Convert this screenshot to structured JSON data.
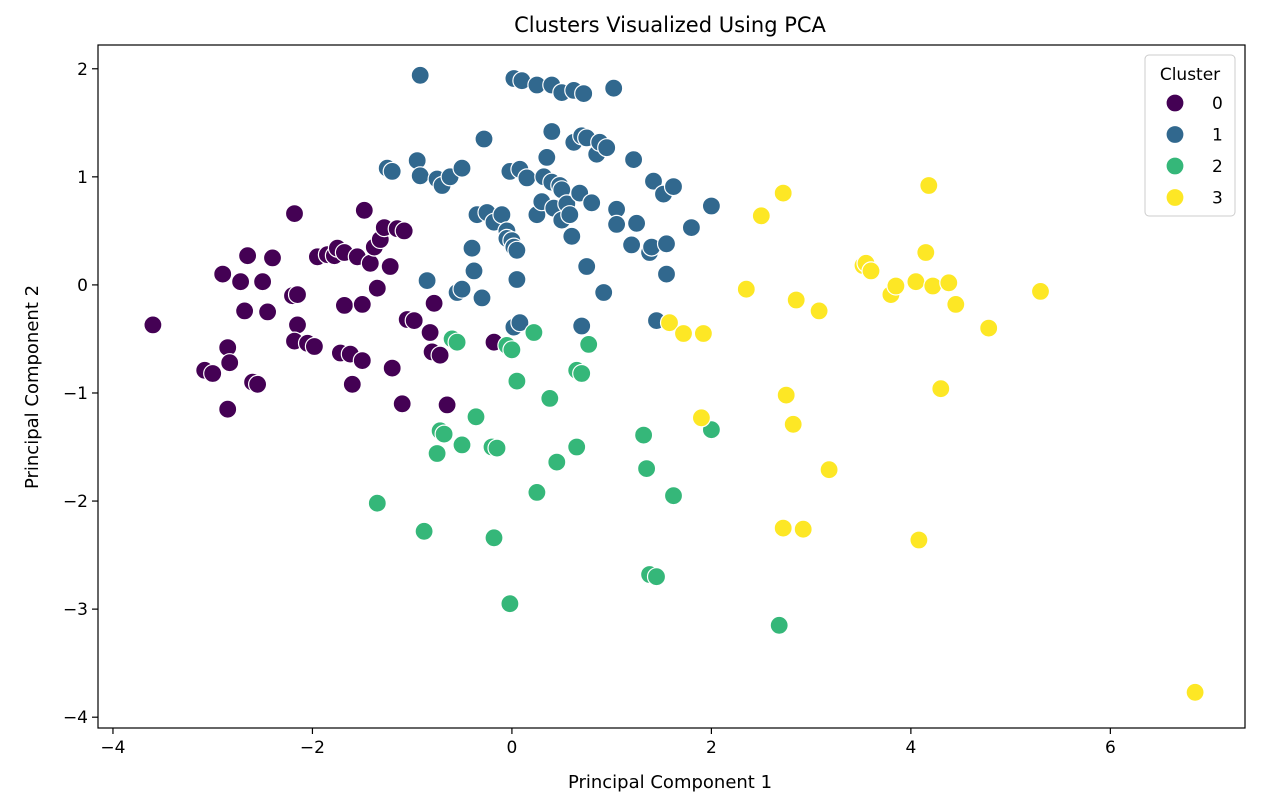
{
  "chart_data": {
    "type": "scatter",
    "title": "Clusters Visualized Using PCA",
    "xlabel": "Principal Component 1",
    "ylabel": "Principal Component 2",
    "xlim": [
      -4.15,
      7.35
    ],
    "ylim": [
      -4.1,
      2.22
    ],
    "xticks": [
      -4,
      -2,
      0,
      2,
      4,
      6
    ],
    "yticks": [
      -4,
      -3,
      -2,
      -1,
      0,
      1,
      2
    ],
    "xtick_labels": [
      "−4",
      "−2",
      "0",
      "2",
      "4",
      "6"
    ],
    "ytick_labels": [
      "−4",
      "−3",
      "−2",
      "−1",
      "0",
      "1",
      "2"
    ],
    "grid": false,
    "legend": {
      "title": "Cluster",
      "placement": "top-right"
    },
    "series": [
      {
        "name": "0",
        "color": "#440154",
        "points": [
          [
            -3.6,
            -0.37
          ],
          [
            -3.08,
            -0.79
          ],
          [
            -3.0,
            -0.82
          ],
          [
            -2.9,
            0.1
          ],
          [
            -2.85,
            -0.58
          ],
          [
            -2.83,
            -0.72
          ],
          [
            -2.85,
            -1.15
          ],
          [
            -2.72,
            0.03
          ],
          [
            -2.68,
            -0.24
          ],
          [
            -2.65,
            0.27
          ],
          [
            -2.6,
            -0.9
          ],
          [
            -2.55,
            -0.92
          ],
          [
            -2.5,
            0.03
          ],
          [
            -2.45,
            -0.25
          ],
          [
            -2.4,
            0.25
          ],
          [
            -2.18,
            0.66
          ],
          [
            -2.2,
            -0.1
          ],
          [
            -2.15,
            -0.09
          ],
          [
            -2.15,
            -0.37
          ],
          [
            -2.18,
            -0.52
          ],
          [
            -2.05,
            -0.54
          ],
          [
            -1.98,
            -0.57
          ],
          [
            -1.95,
            0.26
          ],
          [
            -1.85,
            0.28
          ],
          [
            -1.78,
            0.27
          ],
          [
            -1.75,
            0.34
          ],
          [
            -1.72,
            -0.63
          ],
          [
            -1.68,
            0.3
          ],
          [
            -1.68,
            -0.19
          ],
          [
            -1.62,
            -0.64
          ],
          [
            -1.6,
            -0.92
          ],
          [
            -1.55,
            0.26
          ],
          [
            -1.5,
            -0.7
          ],
          [
            -1.48,
            0.69
          ],
          [
            -1.5,
            -0.18
          ],
          [
            -1.42,
            0.2
          ],
          [
            -1.38,
            0.35
          ],
          [
            -1.32,
            0.42
          ],
          [
            -1.35,
            -0.03
          ],
          [
            -1.28,
            0.53
          ],
          [
            -1.22,
            0.17
          ],
          [
            -1.2,
            -0.77
          ],
          [
            -1.15,
            0.52
          ],
          [
            -1.08,
            0.5
          ],
          [
            -1.1,
            -1.1
          ],
          [
            -1.05,
            -0.32
          ],
          [
            -0.98,
            -0.33
          ],
          [
            -0.82,
            -0.44
          ],
          [
            -0.8,
            -0.62
          ],
          [
            -0.78,
            -0.17
          ],
          [
            -0.72,
            -0.65
          ],
          [
            -0.65,
            -1.11
          ],
          [
            -0.18,
            -0.53
          ]
        ]
      },
      {
        "name": "1",
        "color": "#31688e",
        "points": [
          [
            -0.92,
            1.94
          ],
          [
            0.02,
            1.91
          ],
          [
            0.1,
            1.89
          ],
          [
            0.25,
            1.85
          ],
          [
            0.4,
            1.85
          ],
          [
            0.5,
            1.78
          ],
          [
            0.62,
            1.8
          ],
          [
            0.72,
            1.77
          ],
          [
            1.02,
            1.82
          ],
          [
            -1.25,
            1.08
          ],
          [
            -1.2,
            1.05
          ],
          [
            -0.95,
            1.15
          ],
          [
            -0.92,
            1.01
          ],
          [
            -0.75,
            0.98
          ],
          [
            -0.7,
            0.92
          ],
          [
            -0.62,
            1.0
          ],
          [
            -0.5,
            1.08
          ],
          [
            -0.28,
            1.35
          ],
          [
            -0.35,
            0.65
          ],
          [
            -0.25,
            0.67
          ],
          [
            -0.18,
            0.58
          ],
          [
            -0.1,
            0.65
          ],
          [
            -0.05,
            0.5
          ],
          [
            -0.05,
            0.43
          ],
          [
            0.0,
            0.41
          ],
          [
            0.02,
            0.35
          ],
          [
            0.05,
            0.32
          ],
          [
            -0.02,
            1.05
          ],
          [
            0.08,
            1.07
          ],
          [
            0.15,
            0.99
          ],
          [
            0.25,
            0.65
          ],
          [
            0.3,
            0.77
          ],
          [
            0.32,
            1.0
          ],
          [
            0.35,
            1.18
          ],
          [
            0.4,
            0.95
          ],
          [
            0.42,
            0.71
          ],
          [
            0.4,
            1.42
          ],
          [
            0.48,
            0.92
          ],
          [
            0.5,
            0.88
          ],
          [
            0.5,
            0.6
          ],
          [
            0.55,
            0.75
          ],
          [
            0.58,
            0.65
          ],
          [
            0.6,
            0.45
          ],
          [
            0.62,
            1.32
          ],
          [
            0.68,
            0.85
          ],
          [
            0.7,
            1.38
          ],
          [
            0.75,
            1.36
          ],
          [
            0.75,
            0.17
          ],
          [
            0.8,
            0.76
          ],
          [
            0.85,
            1.21
          ],
          [
            0.88,
            1.32
          ],
          [
            0.92,
            -0.07
          ],
          [
            0.95,
            1.27
          ],
          [
            1.05,
            0.7
          ],
          [
            1.05,
            0.56
          ],
          [
            1.2,
            0.37
          ],
          [
            1.22,
            1.16
          ],
          [
            1.25,
            0.57
          ],
          [
            1.38,
            0.3
          ],
          [
            1.4,
            0.35
          ],
          [
            1.42,
            0.96
          ],
          [
            1.52,
            0.84
          ],
          [
            1.55,
            0.38
          ],
          [
            1.55,
            0.1
          ],
          [
            1.62,
            0.91
          ],
          [
            1.8,
            0.53
          ],
          [
            2.0,
            0.73
          ],
          [
            -0.85,
            0.04
          ],
          [
            -0.55,
            -0.07
          ],
          [
            -0.5,
            -0.04
          ],
          [
            -0.38,
            0.13
          ],
          [
            -0.4,
            0.34
          ],
          [
            -0.3,
            -0.12
          ],
          [
            0.02,
            -0.39
          ],
          [
            0.05,
            0.05
          ],
          [
            0.08,
            -0.35
          ],
          [
            0.7,
            -0.38
          ],
          [
            1.45,
            -0.33
          ]
        ]
      },
      {
        "name": "2",
        "color": "#35b779",
        "points": [
          [
            -0.6,
            -0.5
          ],
          [
            -0.55,
            -0.53
          ],
          [
            -0.72,
            -1.35
          ],
          [
            -0.68,
            -1.38
          ],
          [
            -0.75,
            -1.56
          ],
          [
            -0.5,
            -1.48
          ],
          [
            -0.36,
            -1.22
          ],
          [
            -0.2,
            -1.5
          ],
          [
            -0.15,
            -1.51
          ],
          [
            -0.05,
            -0.56
          ],
          [
            0.0,
            -0.6
          ],
          [
            0.05,
            -0.89
          ],
          [
            0.22,
            -0.44
          ],
          [
            0.25,
            -1.92
          ],
          [
            0.38,
            -1.05
          ],
          [
            0.45,
            -1.64
          ],
          [
            0.65,
            -1.5
          ],
          [
            0.65,
            -0.79
          ],
          [
            0.7,
            -0.82
          ],
          [
            0.77,
            -0.55
          ],
          [
            1.32,
            -1.39
          ],
          [
            1.35,
            -1.7
          ],
          [
            1.38,
            -2.68
          ],
          [
            1.45,
            -2.7
          ],
          [
            1.62,
            -1.95
          ],
          [
            2.0,
            -1.34
          ],
          [
            -1.35,
            -2.02
          ],
          [
            -0.88,
            -2.28
          ],
          [
            -0.18,
            -2.34
          ],
          [
            -0.02,
            -2.95
          ],
          [
            2.68,
            -3.15
          ]
        ]
      },
      {
        "name": "3",
        "color": "#fde725",
        "points": [
          [
            1.58,
            -0.35
          ],
          [
            1.72,
            -0.45
          ],
          [
            1.92,
            -0.45
          ],
          [
            1.9,
            -1.23
          ],
          [
            2.35,
            -0.04
          ],
          [
            2.5,
            0.64
          ],
          [
            2.72,
            0.85
          ],
          [
            2.75,
            -1.02
          ],
          [
            2.82,
            -1.29
          ],
          [
            2.85,
            -0.14
          ],
          [
            2.72,
            -2.25
          ],
          [
            2.92,
            -2.26
          ],
          [
            3.08,
            -0.24
          ],
          [
            3.18,
            -1.71
          ],
          [
            3.52,
            0.18
          ],
          [
            3.55,
            0.2
          ],
          [
            3.6,
            0.13
          ],
          [
            3.8,
            -0.09
          ],
          [
            3.85,
            -0.01
          ],
          [
            4.05,
            0.03
          ],
          [
            4.15,
            0.3
          ],
          [
            4.18,
            0.92
          ],
          [
            4.22,
            -0.01
          ],
          [
            4.3,
            -0.96
          ],
          [
            4.38,
            0.02
          ],
          [
            4.45,
            -0.18
          ],
          [
            4.08,
            -2.36
          ],
          [
            4.78,
            -0.4
          ],
          [
            5.3,
            -0.06
          ],
          [
            6.85,
            -3.77
          ]
        ]
      }
    ]
  }
}
